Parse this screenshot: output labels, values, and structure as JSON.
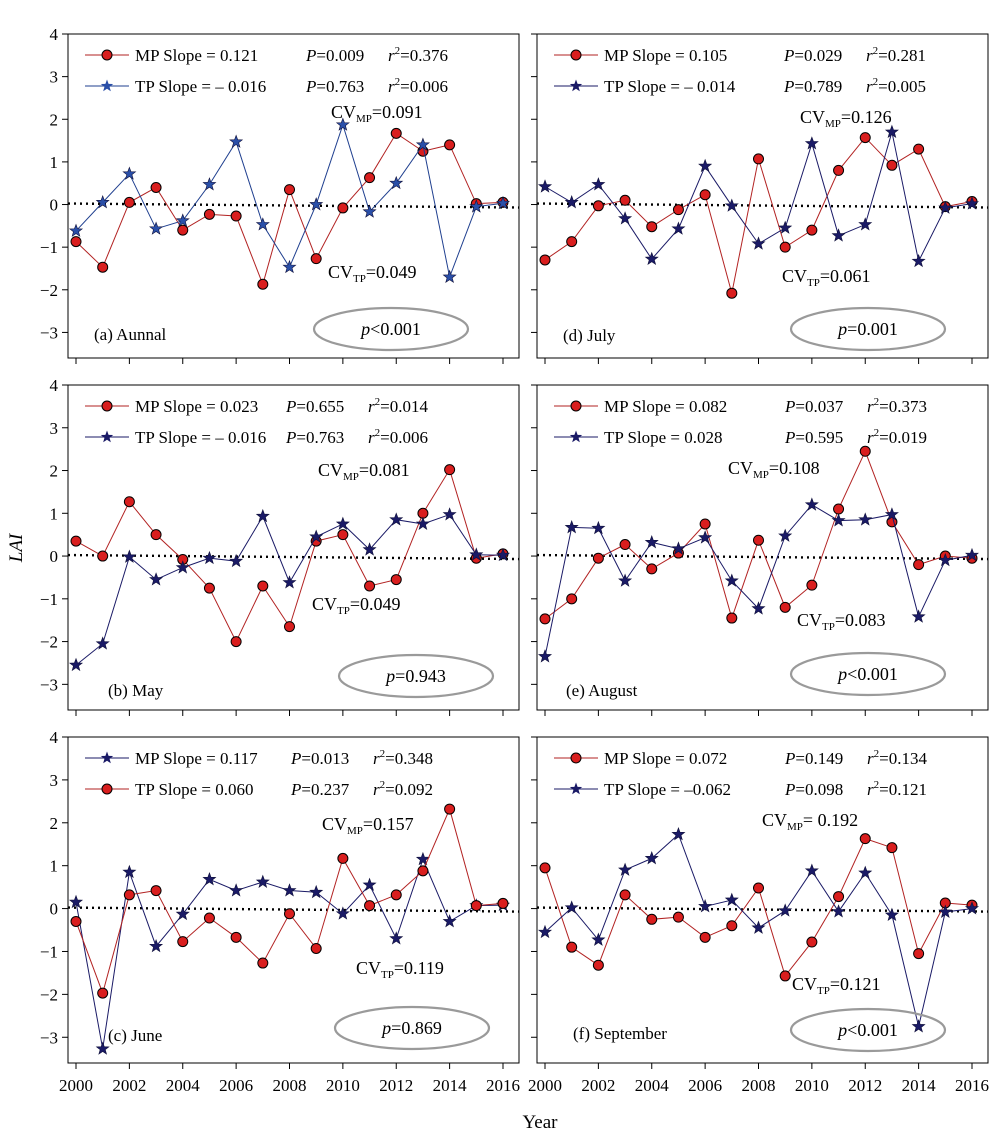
{
  "figure": {
    "xlabel": "Year",
    "ylabel": "LAI"
  },
  "chart_data": [
    {
      "type": "line",
      "label": "(a) Aunnal",
      "x": [
        2000,
        2001,
        2002,
        2003,
        2004,
        2005,
        2006,
        2007,
        2008,
        2009,
        2010,
        2011,
        2012,
        2013,
        2014,
        2015,
        2016
      ],
      "xlim": [
        1999.7,
        2016.6
      ],
      "ylim": [
        -3.6,
        4
      ],
      "grid": false,
      "series": [
        {
          "name": "MP",
          "marker": "circle",
          "color": "#b22222",
          "values": [
            -0.87,
            -1.47,
            0.05,
            0.4,
            -0.6,
            -0.23,
            -0.27,
            -1.87,
            0.35,
            -1.27,
            -0.08,
            0.63,
            1.67,
            1.25,
            1.4,
            0.02,
            0.05
          ]
        },
        {
          "name": "TP",
          "marker": "star",
          "color": "#1f3f8f",
          "values": [
            -0.62,
            0.05,
            0.72,
            -0.57,
            -0.38,
            0.47,
            1.47,
            -0.47,
            -1.47,
            0.0,
            1.87,
            -0.17,
            0.5,
            1.4,
            -1.7,
            -0.05,
            0.03
          ]
        }
      ],
      "legend": [
        {
          "name": "MP",
          "text": "MP Slope = 0.121",
          "P": "P=0.009",
          "r2": "=0.376"
        },
        {
          "name": "TP",
          "text": "TP Slope = – 0.016",
          "P": "P=0.763",
          "r2": "=0.006"
        }
      ],
      "cv_mp": "=0.091",
      "cv_tp": "=0.049",
      "p_text": "p<0.001"
    },
    {
      "type": "line",
      "label": "(b) May",
      "x": [
        2000,
        2001,
        2002,
        2003,
        2004,
        2005,
        2006,
        2007,
        2008,
        2009,
        2010,
        2011,
        2012,
        2013,
        2014,
        2015,
        2016
      ],
      "xlim": [
        1999.7,
        2016.6
      ],
      "ylim": [
        -3.6,
        4
      ],
      "grid": false,
      "series": [
        {
          "name": "MP",
          "marker": "circle",
          "color": "#b22222",
          "values": [
            0.35,
            0.0,
            1.27,
            0.5,
            -0.08,
            -0.75,
            -2.0,
            -0.7,
            -1.65,
            0.35,
            0.5,
            -0.7,
            -0.55,
            1.0,
            2.02,
            -0.05,
            0.05
          ]
        },
        {
          "name": "TP",
          "marker": "star",
          "color": "#1a1a66",
          "values": [
            -2.55,
            -2.05,
            -0.02,
            -0.55,
            -0.27,
            -0.05,
            -0.12,
            0.93,
            -0.62,
            0.45,
            0.75,
            0.15,
            0.85,
            0.75,
            0.97,
            0.03,
            0.02
          ]
        }
      ],
      "legend": [
        {
          "name": "MP",
          "text": "MP Slope = 0.023",
          "P": "P=0.655",
          "r2": "=0.014"
        },
        {
          "name": "TP",
          "text": "TP Slope = – 0.016",
          "P": "P=0.763",
          "r2": "=0.006"
        }
      ],
      "cv_mp": "=0.081",
      "cv_tp": "=0.049",
      "p_text": "p=0.943"
    },
    {
      "type": "line",
      "label": "(c) June",
      "x": [
        2000,
        2001,
        2002,
        2003,
        2004,
        2005,
        2006,
        2007,
        2008,
        2009,
        2010,
        2011,
        2012,
        2013,
        2014,
        2015,
        2016
      ],
      "xlim": [
        1999.7,
        2016.6
      ],
      "ylim": [
        -3.6,
        4
      ],
      "grid": false,
      "series": [
        {
          "name": "MP",
          "marker": "star",
          "color": "#1a1a66",
          "values": [
            0.15,
            -3.27,
            0.85,
            -0.88,
            -0.13,
            0.68,
            0.42,
            0.62,
            0.42,
            0.38,
            -0.12,
            0.55,
            -0.7,
            1.15,
            -0.3,
            0.07,
            0.08
          ]
        },
        {
          "name": "TP",
          "marker": "circle",
          "color": "#b22222",
          "values": [
            -0.3,
            -1.97,
            0.32,
            0.42,
            -0.77,
            -0.22,
            -0.67,
            -1.27,
            -0.12,
            -0.93,
            1.17,
            0.07,
            0.32,
            0.88,
            2.32,
            0.07,
            0.12
          ]
        }
      ],
      "legend": [
        {
          "name": "MP",
          "text": "MP Slope = 0.117",
          "P": "P=0.013",
          "r2": "=0.348"
        },
        {
          "name": "TP",
          "text": "TP Slope = 0.060",
          "P": "P=0.237",
          "r2": "=0.092"
        }
      ],
      "cv_mp": "=0.157",
      "cv_tp": "=0.119",
      "p_text": "p=0.869"
    },
    {
      "type": "line",
      "label": "(d) July",
      "x": [
        2000,
        2001,
        2002,
        2003,
        2004,
        2005,
        2006,
        2007,
        2008,
        2009,
        2010,
        2011,
        2012,
        2013,
        2014,
        2015,
        2016
      ],
      "xlim": [
        1999.7,
        2016.6
      ],
      "ylim": [
        -3.6,
        4
      ],
      "grid": false,
      "series": [
        {
          "name": "MP",
          "marker": "circle",
          "color": "#b22222",
          "values": [
            -1.3,
            -0.87,
            -0.03,
            0.1,
            -0.52,
            -0.12,
            0.23,
            -2.08,
            1.07,
            -1.0,
            -0.6,
            0.8,
            1.57,
            0.92,
            1.3,
            -0.05,
            0.07
          ]
        },
        {
          "name": "TP",
          "marker": "star",
          "color": "#1a1a66",
          "values": [
            0.42,
            0.05,
            0.47,
            -0.33,
            -1.28,
            -0.57,
            0.9,
            -0.03,
            -0.92,
            -0.55,
            1.43,
            -0.73,
            -0.47,
            1.7,
            -1.33,
            -0.08,
            0.02
          ]
        }
      ],
      "legend": [
        {
          "name": "MP",
          "text": "MP Slope = 0.105",
          "P": "P=0.029",
          "r2": "=0.281"
        },
        {
          "name": "TP",
          "text": "TP Slope = – 0.014",
          "P": "P=0.789",
          "r2": "=0.005"
        }
      ],
      "cv_mp": "=0.126",
      "cv_tp": "=0.061",
      "p_text": "p=0.001"
    },
    {
      "type": "line",
      "label": "(e) August",
      "x": [
        2000,
        2001,
        2002,
        2003,
        2004,
        2005,
        2006,
        2007,
        2008,
        2009,
        2010,
        2011,
        2012,
        2013,
        2014,
        2015,
        2016
      ],
      "xlim": [
        1999.7,
        2016.6
      ],
      "ylim": [
        -3.6,
        4
      ],
      "grid": false,
      "series": [
        {
          "name": "MP",
          "marker": "circle",
          "color": "#b22222",
          "values": [
            -1.47,
            -1.0,
            -0.05,
            0.27,
            -0.3,
            0.07,
            0.75,
            -1.45,
            0.37,
            -1.2,
            -0.68,
            1.1,
            2.45,
            0.8,
            -0.2,
            0.0,
            -0.05
          ]
        },
        {
          "name": "TP",
          "marker": "star",
          "color": "#1a1a66",
          "values": [
            -2.35,
            0.67,
            0.65,
            -0.58,
            0.32,
            0.17,
            0.43,
            -0.58,
            -1.23,
            0.47,
            1.2,
            0.83,
            0.85,
            0.97,
            -1.42,
            -0.1,
            0.02
          ]
        }
      ],
      "legend": [
        {
          "name": "MP",
          "text": "MP Slope = 0.082",
          "P": "P=0.037",
          "r2": "=0.373"
        },
        {
          "name": "TP",
          "text": "TP Slope = 0.028",
          "P": "P=0.595",
          "r2": "=0.019"
        }
      ],
      "cv_mp": "=0.108",
      "cv_tp": "=0.083",
      "p_text": "p<0.001"
    },
    {
      "type": "line",
      "label": "(f) September",
      "x": [
        2000,
        2001,
        2002,
        2003,
        2004,
        2005,
        2006,
        2007,
        2008,
        2009,
        2010,
        2011,
        2012,
        2013,
        2014,
        2015,
        2016
      ],
      "xlim": [
        1999.7,
        2016.6
      ],
      "ylim": [
        -3.6,
        4
      ],
      "grid": false,
      "series": [
        {
          "name": "MP",
          "marker": "circle",
          "color": "#b22222",
          "values": [
            0.95,
            -0.9,
            -1.32,
            0.32,
            -0.25,
            -0.2,
            -0.67,
            -0.4,
            0.48,
            -1.57,
            -0.78,
            0.28,
            1.63,
            1.42,
            -1.05,
            0.13,
            0.08
          ]
        },
        {
          "name": "TP",
          "marker": "star",
          "color": "#1a1a66",
          "values": [
            -0.55,
            0.02,
            -0.73,
            0.9,
            1.17,
            1.73,
            0.05,
            0.2,
            -0.45,
            -0.05,
            0.88,
            -0.07,
            0.83,
            -0.15,
            -2.75,
            -0.08,
            0.0
          ]
        }
      ],
      "legend": [
        {
          "name": "MP",
          "text": "MP Slope = 0.072",
          "P": "P=0.149",
          "r2": "=0.134"
        },
        {
          "name": "TP",
          "text": "TP Slope = –0.062",
          "P": "P=0.098",
          "r2": "=0.121"
        }
      ],
      "cv_mp": "= 0.192",
      "cv_tp": "=0.121",
      "p_text": "p<0.001"
    }
  ]
}
